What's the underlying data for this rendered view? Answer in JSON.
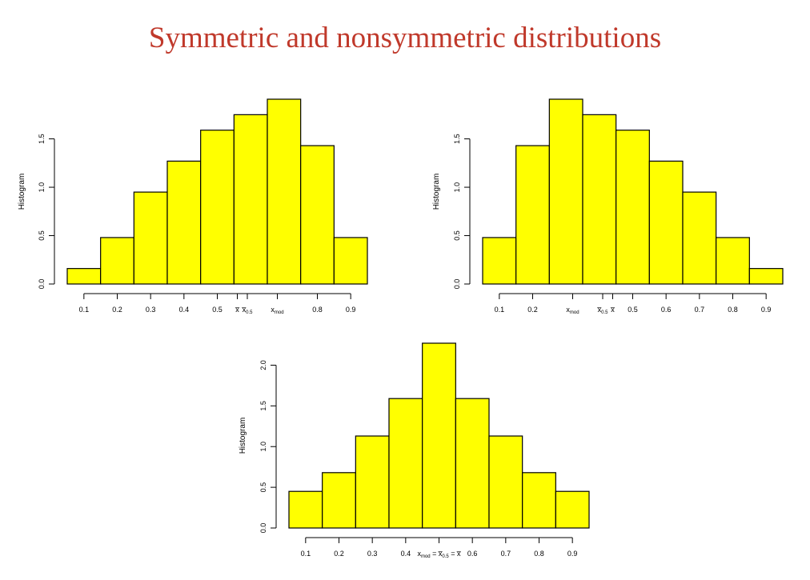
{
  "page": {
    "title": "Symmetric and nonsymmetric distributions",
    "title_color": "#c0392b"
  },
  "style": {
    "bar_fill": "#ffff00",
    "bar_stroke": "#000000",
    "axis_color": "#000000"
  },
  "chart_data": [
    {
      "type": "bar",
      "title": "",
      "ylabel": "Histogram",
      "xlabel": "",
      "bin_edges": [
        0.05,
        0.15,
        0.25,
        0.35,
        0.45,
        0.55,
        0.65,
        0.75,
        0.85,
        0.95
      ],
      "values": [
        0.16,
        0.48,
        0.95,
        1.27,
        1.59,
        1.75,
        1.91,
        1.43,
        0.48
      ],
      "xlim": [
        0.05,
        0.95
      ],
      "ylim": [
        0,
        1.91
      ],
      "x_ticks": [
        {
          "value": 0.1,
          "label": "0.1"
        },
        {
          "value": 0.2,
          "label": "0.2"
        },
        {
          "value": 0.3,
          "label": "0.3"
        },
        {
          "value": 0.4,
          "label": "0.4"
        },
        {
          "value": 0.5,
          "label": "0.5"
        },
        {
          "value": 0.8,
          "label": "0.8"
        },
        {
          "value": 0.9,
          "label": "0.9"
        }
      ],
      "y_ticks": [
        {
          "value": 0.0,
          "label": "0.0"
        },
        {
          "value": 0.5,
          "label": "0.5"
        },
        {
          "value": 1.0,
          "label": "1.0"
        },
        {
          "value": 1.5,
          "label": "1.5"
        }
      ],
      "annotations": [
        {
          "value": 0.56,
          "text": "x̅",
          "sub": ""
        },
        {
          "value": 0.59,
          "text": "x̅",
          "sub": "0.5"
        },
        {
          "value": 0.68,
          "text": "x",
          "sub": "mod"
        }
      ]
    },
    {
      "type": "bar",
      "title": "",
      "ylabel": "Histogram",
      "xlabel": "",
      "bin_edges": [
        0.05,
        0.15,
        0.25,
        0.35,
        0.45,
        0.55,
        0.65,
        0.75,
        0.85,
        0.95
      ],
      "values": [
        0.48,
        1.43,
        1.91,
        1.75,
        1.59,
        1.27,
        0.95,
        0.48,
        0.16
      ],
      "xlim": [
        0.05,
        0.95
      ],
      "ylim": [
        0,
        1.91
      ],
      "x_ticks": [
        {
          "value": 0.1,
          "label": "0.1"
        },
        {
          "value": 0.2,
          "label": "0.2"
        },
        {
          "value": 0.5,
          "label": "0.5"
        },
        {
          "value": 0.6,
          "label": "0.6"
        },
        {
          "value": 0.7,
          "label": "0.7"
        },
        {
          "value": 0.8,
          "label": "0.8"
        },
        {
          "value": 0.9,
          "label": "0.9"
        }
      ],
      "y_ticks": [
        {
          "value": 0.0,
          "label": "0.0"
        },
        {
          "value": 0.5,
          "label": "0.5"
        },
        {
          "value": 1.0,
          "label": "1.0"
        },
        {
          "value": 1.5,
          "label": "1.5"
        }
      ],
      "annotations": [
        {
          "value": 0.32,
          "text": "x",
          "sub": "mod"
        },
        {
          "value": 0.41,
          "text": "x̅",
          "sub": "0.5"
        },
        {
          "value": 0.44,
          "text": "x̅",
          "sub": ""
        }
      ]
    },
    {
      "type": "bar",
      "title": "",
      "ylabel": "Histogram",
      "xlabel": "",
      "bin_edges": [
        0.05,
        0.15,
        0.25,
        0.35,
        0.45,
        0.55,
        0.65,
        0.75,
        0.85,
        0.95
      ],
      "values": [
        0.45,
        0.68,
        1.13,
        1.59,
        2.27,
        1.59,
        1.13,
        0.68,
        0.45
      ],
      "xlim": [
        0.05,
        0.95
      ],
      "ylim": [
        0,
        2.27
      ],
      "x_ticks": [
        {
          "value": 0.1,
          "label": "0.1"
        },
        {
          "value": 0.2,
          "label": "0.2"
        },
        {
          "value": 0.3,
          "label": "0.3"
        },
        {
          "value": 0.4,
          "label": "0.4"
        },
        {
          "value": 0.6,
          "label": "0.6"
        },
        {
          "value": 0.7,
          "label": "0.7"
        },
        {
          "value": 0.8,
          "label": "0.8"
        },
        {
          "value": 0.9,
          "label": "0.9"
        }
      ],
      "y_ticks": [
        {
          "value": 0.0,
          "label": "0.0"
        },
        {
          "value": 0.5,
          "label": "0.5"
        },
        {
          "value": 1.0,
          "label": "1.0"
        },
        {
          "value": 1.5,
          "label": "1.5"
        },
        {
          "value": 2.0,
          "label": "2.0"
        }
      ],
      "annotations": [
        {
          "value": 0.5,
          "text": "x",
          "sub": "mod",
          "suffix": " = x̅",
          "sub2": "0.5",
          "suffix2": " = x̅"
        }
      ]
    }
  ]
}
